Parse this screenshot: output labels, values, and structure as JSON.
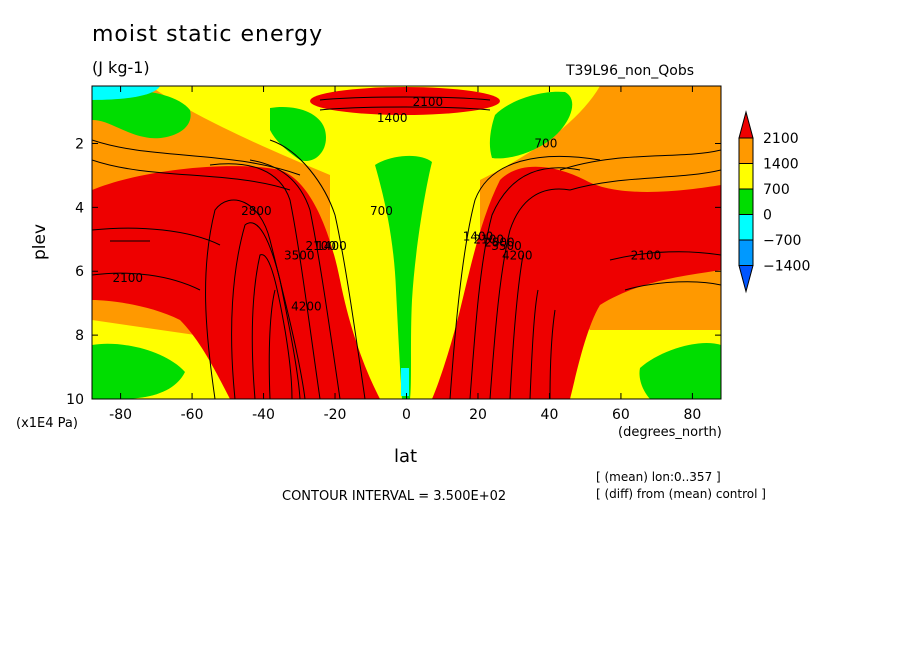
{
  "header": {
    "title": "moist static energy",
    "units": "(J kg-1)",
    "run": "T39L96_non_Qobs"
  },
  "footer": {
    "contour_interval": "CONTOUR INTERVAL = 3.500E+02",
    "note1": "[ (mean) lon:0..357 ]",
    "note2": "[ (diff) from (mean) control ]"
  },
  "chart_data": {
    "type": "contour",
    "xlabel": "lat",
    "xunits": "(degrees_north)",
    "ylabel": "plev",
    "yunits": "(x1E4 Pa)",
    "xlim": [
      -88,
      88
    ],
    "ylim": [
      0.2,
      10
    ],
    "y_inverted": true,
    "x_ticks": [
      -80,
      -60,
      -40,
      -20,
      0,
      20,
      40,
      60,
      80
    ],
    "y_ticks": [
      2,
      4,
      6,
      8,
      10
    ],
    "contour_interval": 350,
    "colorbar": {
      "levels": [
        2100,
        1400,
        700,
        0,
        -700,
        -1400
      ],
      "colors": [
        "#ee0000",
        "#ff9900",
        "#ffff00",
        "#00dd00",
        "#00ffff",
        "#0099ff",
        "#0055ff"
      ]
    },
    "contour_labels": [
      {
        "text": "2100",
        "x": 6,
        "y": 0.8
      },
      {
        "text": "1400",
        "x": -4,
        "y": 1.3
      },
      {
        "text": "700",
        "x": 39,
        "y": 2.1
      },
      {
        "text": "700",
        "x": -7,
        "y": 4.2
      },
      {
        "text": "2800",
        "x": -42,
        "y": 4.2
      },
      {
        "text": "1400",
        "x": -21,
        "y": 5.3
      },
      {
        "text": "2100",
        "x": -24,
        "y": 5.3
      },
      {
        "text": "3500",
        "x": -30,
        "y": 5.6
      },
      {
        "text": "4200",
        "x": -28,
        "y": 7.2
      },
      {
        "text": "1400",
        "x": 20,
        "y": 5.0
      },
      {
        "text": "2100",
        "x": 23,
        "y": 5.1
      },
      {
        "text": "2800",
        "x": 26,
        "y": 5.2
      },
      {
        "text": "3500",
        "x": 28,
        "y": 5.3
      },
      {
        "text": "4200",
        "x": 31,
        "y": 5.6
      },
      {
        "text": "2100",
        "x": 67,
        "y": 5.6
      },
      {
        "text": "2100",
        "x": -78,
        "y": 6.3
      }
    ]
  }
}
